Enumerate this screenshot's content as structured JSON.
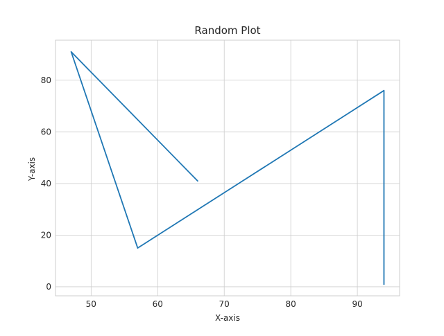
{
  "chart_data": {
    "type": "line",
    "title": "Random Plot",
    "xlabel": "X-axis",
    "ylabel": "Y-axis",
    "xlim": [
      44.65,
      96.35
    ],
    "ylim": [
      -3.5,
      95.5
    ],
    "xticks": [
      50,
      60,
      70,
      80,
      90
    ],
    "yticks": [
      0,
      20,
      40,
      60,
      80
    ],
    "grid": true,
    "series": [
      {
        "color": "#1f77b4",
        "x": [
          66,
          47,
          57,
          94,
          94
        ],
        "y": [
          41,
          91,
          15,
          76,
          1
        ]
      }
    ]
  }
}
